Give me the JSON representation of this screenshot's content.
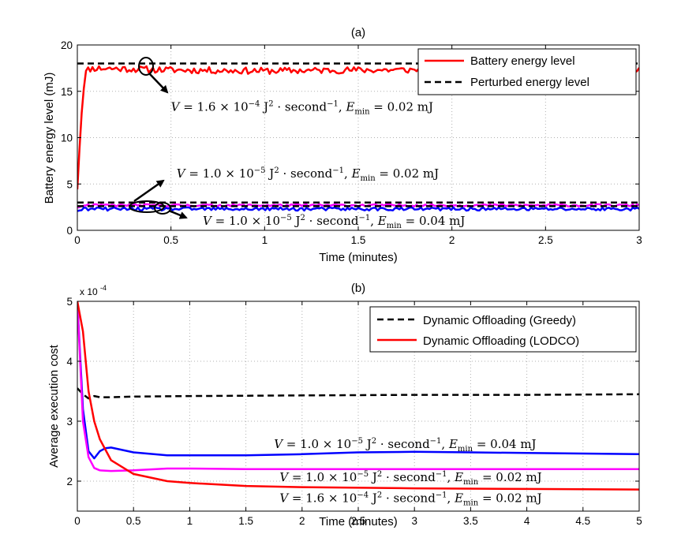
{
  "chart_data": [
    {
      "type": "line",
      "title": "(a)",
      "xlabel": "Time (minutes)",
      "ylabel": "Battery energy level (mJ)",
      "xlim": [
        0,
        3
      ],
      "ylim": [
        0,
        20
      ],
      "x_ticks": [
        0,
        0.5,
        1,
        1.5,
        2,
        2.5,
        3
      ],
      "x_tick_labels": [
        "0",
        "0.5",
        "1",
        "1.5",
        "2",
        "2.5",
        "3"
      ],
      "y_ticks": [
        0,
        5,
        10,
        15,
        20
      ],
      "y_tick_labels": [
        "0",
        "5",
        "10",
        "15",
        "20"
      ],
      "grid": true,
      "legend": {
        "placement": "top-right",
        "entries": [
          {
            "label": "Battery energy level",
            "color": "#ff0000",
            "style": "solid"
          },
          {
            "label": "Perturbed energy level",
            "color": "#000000",
            "style": "dashed"
          }
        ]
      },
      "series": [
        {
          "color": "#ff0000",
          "style": "solid",
          "noise": 0.35,
          "x": [
            0,
            0.02,
            0.04,
            0.06,
            0.1,
            0.5,
            1,
            1.5,
            2,
            2.5,
            3
          ],
          "y": [
            4.6,
            12.0,
            16.9,
            17.4,
            17.5,
            17.3,
            17.2,
            17.3,
            17.3,
            17.3,
            17.2
          ]
        },
        {
          "color": "#000000",
          "style": "dashed",
          "x": [
            0,
            3
          ],
          "y": [
            18.0,
            18.0
          ]
        },
        {
          "color": "#ff00ff",
          "style": "solid",
          "noise": 0.12,
          "x": [
            0,
            0.05,
            3
          ],
          "y": [
            2.5,
            2.7,
            2.7
          ]
        },
        {
          "color": "#0000ff",
          "style": "solid",
          "noise": 0.18,
          "x": [
            0,
            0.05,
            3
          ],
          "y": [
            2.2,
            2.3,
            2.3
          ]
        },
        {
          "color": "#000000",
          "style": "dashed",
          "x": [
            0,
            3
          ],
          "y": [
            3.0,
            3.0
          ]
        },
        {
          "color": "#000000",
          "style": "dashed",
          "x": [
            0,
            3
          ],
          "y": [
            2.6,
            2.6
          ]
        }
      ],
      "annotations": [
        {
          "label": "V = 1.6 × 10^−4 J²·second^−1, E_min = 0.02 mJ",
          "v": "1.6",
          "exp": "−4",
          "emin": "0.02",
          "x": 0.5,
          "y": 12.9
        },
        {
          "label": "V = 1.0 × 10^−5 J²·second^−1, E_min = 0.02 mJ",
          "v": "1.0",
          "exp": "−5",
          "emin": "0.02",
          "x": 0.53,
          "y": 5.7
        },
        {
          "label": "V = 1.0 × 10^−5 J²·second^−1, E_min = 0.04 mJ",
          "v": "1.0",
          "exp": "−5",
          "emin": "0.04",
          "x": 0.67,
          "y": 0.6
        }
      ]
    },
    {
      "type": "line",
      "title": "(b)",
      "xlabel": "Time (minutes)",
      "ylabel": "Average execution cost",
      "y_multiplier": "x 10",
      "y_multiplier_exp": "-4",
      "xlim": [
        0,
        5
      ],
      "ylim": [
        1.5,
        5
      ],
      "x_ticks": [
        0,
        0.5,
        1,
        1.5,
        2,
        2.5,
        3,
        3.5,
        4,
        4.5,
        5
      ],
      "x_tick_labels": [
        "0",
        "0.5",
        "1",
        "1.5",
        "2",
        "2.5",
        "3",
        "3.5",
        "4",
        "4.5",
        "5"
      ],
      "y_ticks": [
        2,
        3,
        4,
        5
      ],
      "y_tick_labels": [
        "2",
        "3",
        "4",
        "5"
      ],
      "grid": true,
      "legend": {
        "placement": "top-right",
        "entries": [
          {
            "label": "Dynamic Offloading (Greedy)",
            "color": "#000000",
            "style": "dashed"
          },
          {
            "label": "Dynamic Offloading (LODCO)",
            "color": "#ff0000",
            "style": "solid"
          }
        ]
      },
      "series": [
        {
          "color": "#000000",
          "style": "dashed",
          "x": [
            0,
            0.05,
            0.1,
            0.15,
            0.2,
            0.3,
            0.5,
            1,
            2,
            3,
            4,
            5
          ],
          "y": [
            3.55,
            3.45,
            3.38,
            3.42,
            3.4,
            3.4,
            3.41,
            3.42,
            3.43,
            3.44,
            3.44,
            3.45
          ]
        },
        {
          "color": "#0000ff",
          "style": "solid",
          "x": [
            0,
            0.05,
            0.1,
            0.15,
            0.2,
            0.25,
            0.3,
            0.5,
            0.8,
            1,
            1.5,
            2,
            2.5,
            3,
            3.5,
            4,
            4.5,
            5
          ],
          "y": [
            5.0,
            3.2,
            2.5,
            2.38,
            2.5,
            2.55,
            2.56,
            2.48,
            2.43,
            2.43,
            2.43,
            2.45,
            2.48,
            2.49,
            2.48,
            2.47,
            2.46,
            2.45
          ]
        },
        {
          "color": "#ff00ff",
          "style": "solid",
          "x": [
            0,
            0.05,
            0.1,
            0.15,
            0.2,
            0.3,
            0.5,
            0.8,
            1,
            1.5,
            2,
            3,
            4,
            5
          ],
          "y": [
            5.0,
            3.0,
            2.4,
            2.22,
            2.18,
            2.17,
            2.18,
            2.21,
            2.21,
            2.2,
            2.2,
            2.2,
            2.2,
            2.2
          ]
        },
        {
          "color": "#ff0000",
          "style": "solid",
          "x": [
            0,
            0.05,
            0.1,
            0.15,
            0.2,
            0.3,
            0.5,
            0.8,
            1,
            1.5,
            2,
            3,
            4,
            5
          ],
          "y": [
            5.0,
            4.5,
            3.5,
            3.0,
            2.7,
            2.35,
            2.12,
            2.0,
            1.97,
            1.92,
            1.9,
            1.88,
            1.87,
            1.86
          ]
        }
      ],
      "annotations": [
        {
          "label": "V = 1.0 × 10^−5 J²·second^−1, E_min = 0.04 mJ",
          "v": "1.0",
          "exp": "−5",
          "emin": "0.04",
          "x": 1.75,
          "y": 2.55
        },
        {
          "label": "V = 1.0 × 10^−5 J²·second^−1, E_min = 0.02 mJ",
          "v": "1.0",
          "exp": "−5",
          "emin": "0.02",
          "x": 1.8,
          "y": 2.0
        },
        {
          "label": "V = 1.6 × 10^−4 J²·second^−1, E_min = 0.02 mJ",
          "v": "1.6",
          "exp": "−4",
          "emin": "0.02",
          "x": 1.8,
          "y": 1.65
        }
      ]
    }
  ]
}
